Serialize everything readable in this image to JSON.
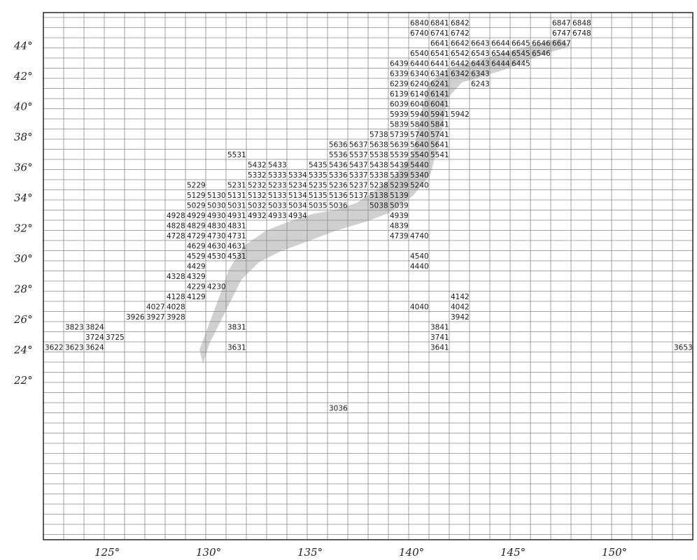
{
  "map": {
    "latitude_labels": [
      "44°",
      "42°",
      "40°",
      "38°",
      "36°",
      "34°",
      "32°",
      "30°",
      "28°",
      "26°",
      "24°",
      "22°"
    ],
    "longitude_labels": [
      "125°",
      "130°",
      "135°",
      "140°",
      "145°",
      "150°"
    ],
    "colors": {
      "land": "#c8c8c8",
      "grid": "#8a8a8a",
      "frame": "#333333",
      "label": "#1a1a1a"
    },
    "mesh_codes": [
      "6840",
      "6841",
      "6842",
      "6847",
      "6848",
      "6740",
      "6741",
      "6742",
      "6747",
      "6748",
      "6641",
      "6642",
      "6643",
      "6644",
      "6645",
      "6646",
      "6647",
      "6540",
      "6541",
      "6542",
      "6543",
      "6544",
      "6545",
      "6546",
      "6439",
      "6440",
      "6441",
      "6442",
      "6443",
      "6444",
      "6445",
      "6339",
      "6340",
      "6341",
      "6342",
      "6343",
      "6239",
      "6240",
      "6241",
      "6243",
      "6139",
      "6140",
      "6141",
      "6039",
      "6040",
      "6041",
      "5939",
      "5940",
      "5941",
      "5942",
      "5839",
      "5840",
      "5841",
      "5738",
      "5739",
      "5740",
      "5741",
      "5636",
      "5637",
      "5638",
      "5639",
      "5640",
      "5641",
      "5531",
      "5536",
      "5537",
      "5538",
      "5539",
      "5540",
      "5541",
      "5432",
      "5433",
      "5435",
      "5436",
      "5437",
      "5438",
      "5439",
      "5440",
      "5332",
      "5333",
      "5334",
      "5335",
      "5336",
      "5337",
      "5338",
      "5339",
      "5340",
      "5229",
      "5231",
      "5232",
      "5233",
      "5234",
      "5235",
      "5236",
      "5237",
      "5238",
      "5239",
      "5240",
      "5129",
      "5130",
      "5131",
      "5132",
      "5133",
      "5134",
      "5135",
      "5136",
      "5137",
      "5138",
      "5139",
      "5029",
      "5030",
      "5031",
      "5032",
      "5033",
      "5034",
      "5035",
      "5036",
      "5038",
      "5039",
      "4928",
      "4929",
      "4930",
      "4931",
      "4932",
      "4933",
      "4934",
      "4939",
      "4828",
      "4829",
      "4830",
      "4831",
      "4839",
      "4728",
      "4729",
      "4730",
      "4731",
      "4739",
      "4740",
      "4629",
      "4630",
      "4631",
      "4529",
      "4530",
      "4531",
      "4540",
      "4429",
      "4440",
      "4328",
      "4329",
      "4229",
      "4230",
      "4128",
      "4129",
      "4142",
      "4027",
      "4028",
      "4040",
      "4042",
      "3926",
      "3927",
      "3928",
      "3942",
      "3823",
      "3824",
      "3831",
      "3841",
      "3724",
      "3725",
      "3741",
      "3622",
      "3623",
      "3624",
      "3631",
      "3641",
      "3653",
      "3036"
    ]
  }
}
